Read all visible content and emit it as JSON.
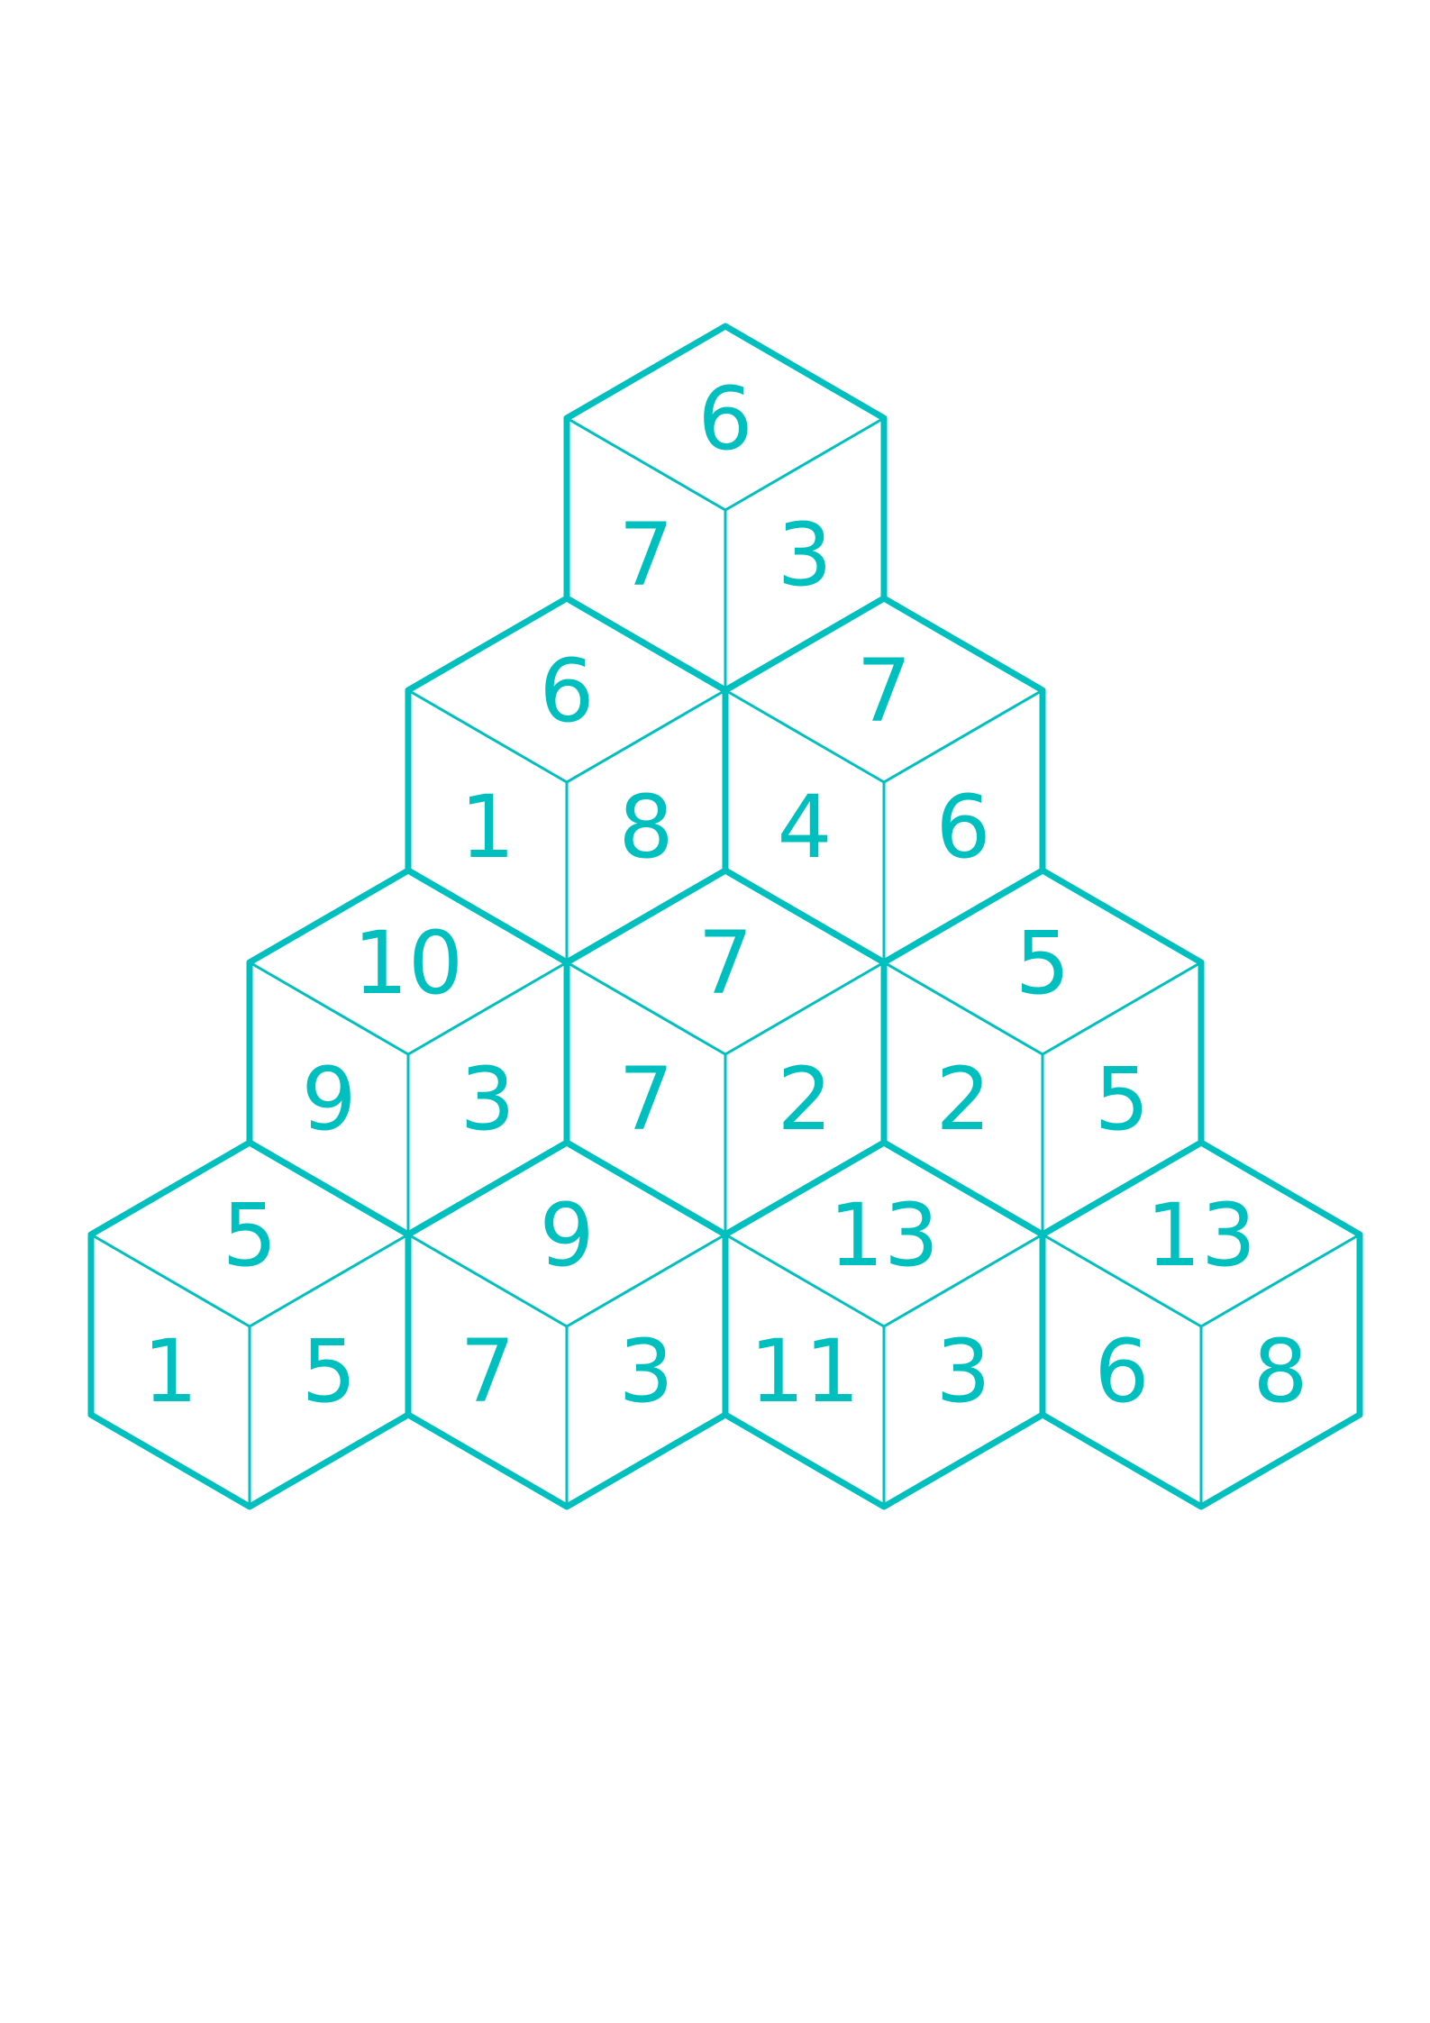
{
  "colors": {
    "stroke": "#00bfbf",
    "text": "#00bfbf",
    "background": "#ffffff"
  },
  "cubes": [
    {
      "row": 1,
      "col": 1,
      "top": "6",
      "left": "7",
      "right": "3"
    },
    {
      "row": 2,
      "col": 1,
      "top": "6",
      "left": "1",
      "right": "8"
    },
    {
      "row": 2,
      "col": 2,
      "top": "7",
      "left": "4",
      "right": "6"
    },
    {
      "row": 3,
      "col": 1,
      "top": "10",
      "left": "9",
      "right": "3"
    },
    {
      "row": 3,
      "col": 2,
      "top": "7",
      "left": "7",
      "right": "2"
    },
    {
      "row": 3,
      "col": 3,
      "top": "5",
      "left": "2",
      "right": "5"
    },
    {
      "row": 4,
      "col": 1,
      "top": "5",
      "left": "1",
      "right": "5"
    },
    {
      "row": 4,
      "col": 2,
      "top": "9",
      "left": "7",
      "right": "3"
    },
    {
      "row": 4,
      "col": 3,
      "top": "13",
      "left": "11",
      "right": "3"
    },
    {
      "row": 4,
      "col": 4,
      "top": "13",
      "left": "6",
      "right": "8"
    }
  ]
}
